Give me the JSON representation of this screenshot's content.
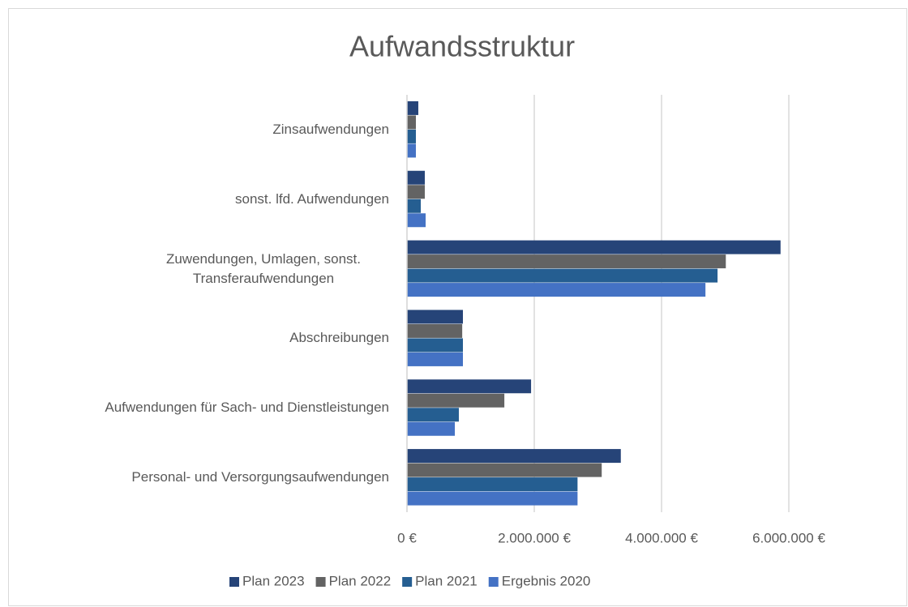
{
  "chart_data": {
    "type": "hbar",
    "title": "Aufwandsstruktur",
    "categories": [
      "Zinsaufwendungen",
      "sonst. lfd. Aufwendungen",
      "Zuwendungen, Umlagen, sonst. Transferaufwendungen",
      "Abschreibungen",
      "Aufwendungen für Sach- und Dienstleistungen",
      "Personal- und Versorgungsaufwendungen"
    ],
    "series": [
      {
        "name": "Plan 2023",
        "color": "#264478",
        "values": [
          178000,
          280000,
          5870000,
          879000,
          1950000,
          3360000
        ]
      },
      {
        "name": "Plan 2022",
        "color": "#636363",
        "values": [
          140000,
          280000,
          5010000,
          868000,
          1530000,
          3060000
        ]
      },
      {
        "name": "Plan 2021",
        "color": "#255e91",
        "values": [
          140000,
          217000,
          4880000,
          879000,
          815000,
          2680000
        ]
      },
      {
        "name": "Ergebnis 2020",
        "color": "#4472c4",
        "values": [
          140000,
          293000,
          4690000,
          879000,
          752000,
          2680000
        ]
      }
    ],
    "xlim": [
      0,
      6000000
    ],
    "xticks": [
      {
        "value": 0,
        "label": "0 €"
      },
      {
        "value": 2000000,
        "label": "2.000.000 €"
      },
      {
        "value": 4000000,
        "label": "4.000.000 €"
      },
      {
        "value": 6000000,
        "label": "6.000.000 €"
      }
    ],
    "grid": true,
    "legend": "bottom"
  }
}
